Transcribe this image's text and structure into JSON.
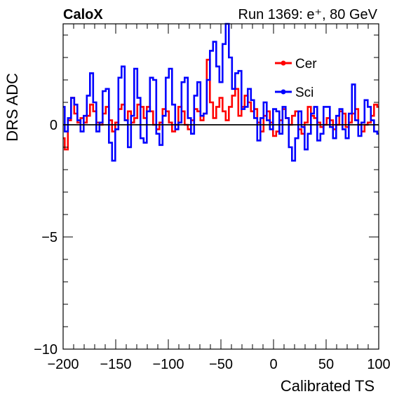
{
  "chart_data": {
    "type": "line",
    "experiment": "CaloX",
    "run_info": "Run 1369: e⁺, 80 GeV",
    "xlabel": "Calibrated TS",
    "ylabel": "DRS ADC",
    "xlim": [
      -200,
      100
    ],
    "ylim": [
      -10,
      4.5
    ],
    "x_ticks": [
      -200,
      -150,
      -100,
      -50,
      0,
      50,
      100
    ],
    "y_ticks": [
      -10,
      -5,
      0
    ],
    "baseline": 0,
    "legend_position": "top-right",
    "series": [
      {
        "name": "Cer",
        "color": "#ff0000",
        "x": [
          -200,
          -197,
          -194,
          -191,
          -188,
          -185,
          -182,
          -179,
          -176,
          -173,
          -170,
          -167,
          -164,
          -161,
          -158,
          -155,
          -152,
          -149,
          -146,
          -143,
          -140,
          -137,
          -134,
          -131,
          -128,
          -125,
          -122,
          -119,
          -116,
          -113,
          -110,
          -107,
          -104,
          -101,
          -98,
          -95,
          -92,
          -89,
          -86,
          -83,
          -80,
          -77,
          -74,
          -71,
          -68,
          -65,
          -62,
          -59,
          -56,
          -53,
          -50,
          -47,
          -44,
          -41,
          -38,
          -35,
          -32,
          -29,
          -26,
          -23,
          -20,
          -17,
          -14,
          -11,
          -8,
          -5,
          -2,
          1,
          4,
          7,
          10,
          13,
          16,
          19,
          22,
          25,
          28,
          31,
          34,
          37,
          40,
          43,
          46,
          49,
          52,
          55,
          58,
          61,
          64,
          67,
          70,
          73,
          76,
          79,
          82,
          85,
          88,
          91,
          94,
          97,
          100
        ],
        "y": [
          -0.6,
          -1.1,
          0.2,
          1.2,
          0.5,
          0.1,
          0.3,
          0.1,
          0.4,
          0.9,
          0.6,
          0.1,
          0.0,
          0.5,
          0.8,
          0.2,
          -0.3,
          0.1,
          0.7,
          0.9,
          0.2,
          0.6,
          0.1,
          0.3,
          0.9,
          0.8,
          0.3,
          0.8,
          0.6,
          0.0,
          -0.2,
          0.1,
          0.7,
          0.6,
          0.1,
          -0.3,
          0.0,
          0.8,
          0.6,
          0.0,
          -0.2,
          0.2,
          0.7,
          0.6,
          0.2,
          0.5,
          2.9,
          1.0,
          0.3,
          0.8,
          1.2,
          0.6,
          0.2,
          0.8,
          1.3,
          1.6,
          0.4,
          0.8,
          1.3,
          1.0,
          0.6,
          0.7,
          0.1,
          -0.3,
          0.4,
          0.6,
          0.1,
          -0.5,
          -0.3,
          0.2,
          0.7,
          0.3,
          0.0,
          0.4,
          0.6,
          -0.2,
          -0.4,
          0.1,
          0.8,
          0.4,
          0.3,
          0.1,
          -0.1,
          0.0,
          0.3,
          0.2,
          -0.2,
          0.0,
          0.6,
          0.5,
          -0.1,
          0.1,
          0.5,
          0.7,
          0.0,
          -0.3,
          0.0,
          0.1,
          0.4,
          0.9,
          0.8
        ]
      },
      {
        "name": "Sci",
        "color": "#0000ff",
        "x": [
          -200,
          -197,
          -194,
          -191,
          -188,
          -185,
          -182,
          -179,
          -176,
          -173,
          -170,
          -167,
          -164,
          -161,
          -158,
          -155,
          -152,
          -149,
          -146,
          -143,
          -140,
          -137,
          -134,
          -131,
          -128,
          -125,
          -122,
          -119,
          -116,
          -113,
          -110,
          -107,
          -104,
          -101,
          -98,
          -95,
          -92,
          -89,
          -86,
          -83,
          -80,
          -77,
          -74,
          -71,
          -68,
          -65,
          -62,
          -59,
          -56,
          -53,
          -50,
          -47,
          -44,
          -41,
          -38,
          -35,
          -32,
          -29,
          -26,
          -23,
          -20,
          -17,
          -14,
          -11,
          -8,
          -5,
          -2,
          1,
          4,
          7,
          10,
          13,
          16,
          19,
          22,
          25,
          28,
          31,
          34,
          37,
          40,
          43,
          46,
          49,
          52,
          55,
          58,
          61,
          64,
          67,
          70,
          73,
          76,
          79,
          82,
          85,
          88,
          91,
          94,
          97,
          100
        ],
        "y": [
          0.8,
          -0.3,
          0.3,
          1.2,
          0.9,
          0.2,
          -0.3,
          0.4,
          1.3,
          2.3,
          1.0,
          -0.3,
          0.1,
          1.5,
          1.6,
          -0.8,
          -1.6,
          -0.2,
          2.1,
          2.6,
          0.2,
          -1.0,
          0.4,
          2.5,
          1.2,
          -0.6,
          -0.8,
          0.6,
          2.1,
          2.0,
          -0.4,
          -0.9,
          0.4,
          2.1,
          2.5,
          0.9,
          -0.2,
          0.1,
          1.9,
          2.1,
          0.3,
          -0.4,
          1.3,
          1.9,
          0.4,
          0.5,
          2.0,
          3.3,
          3.7,
          2.6,
          1.9,
          3.6,
          4.5,
          3.0,
          1.6,
          2.3,
          2.4,
          0.7,
          0.8,
          1.6,
          1.1,
          0.3,
          -0.7,
          0.3,
          1.0,
          0.2,
          -0.2,
          0.7,
          0.6,
          -0.4,
          0.8,
          0.3,
          -1.0,
          -1.6,
          -0.6,
          0.6,
          -0.1,
          -1.1,
          -0.4,
          0.5,
          0.8,
          -0.7,
          -0.4,
          0.8,
          0.8,
          -0.1,
          -0.6,
          0.4,
          0.7,
          -0.2,
          -0.6,
          0.5,
          1.8,
          0.2,
          -0.5,
          0.1,
          1.1,
          0.8,
          0.2,
          -0.3,
          -0.4
        ]
      }
    ]
  }
}
